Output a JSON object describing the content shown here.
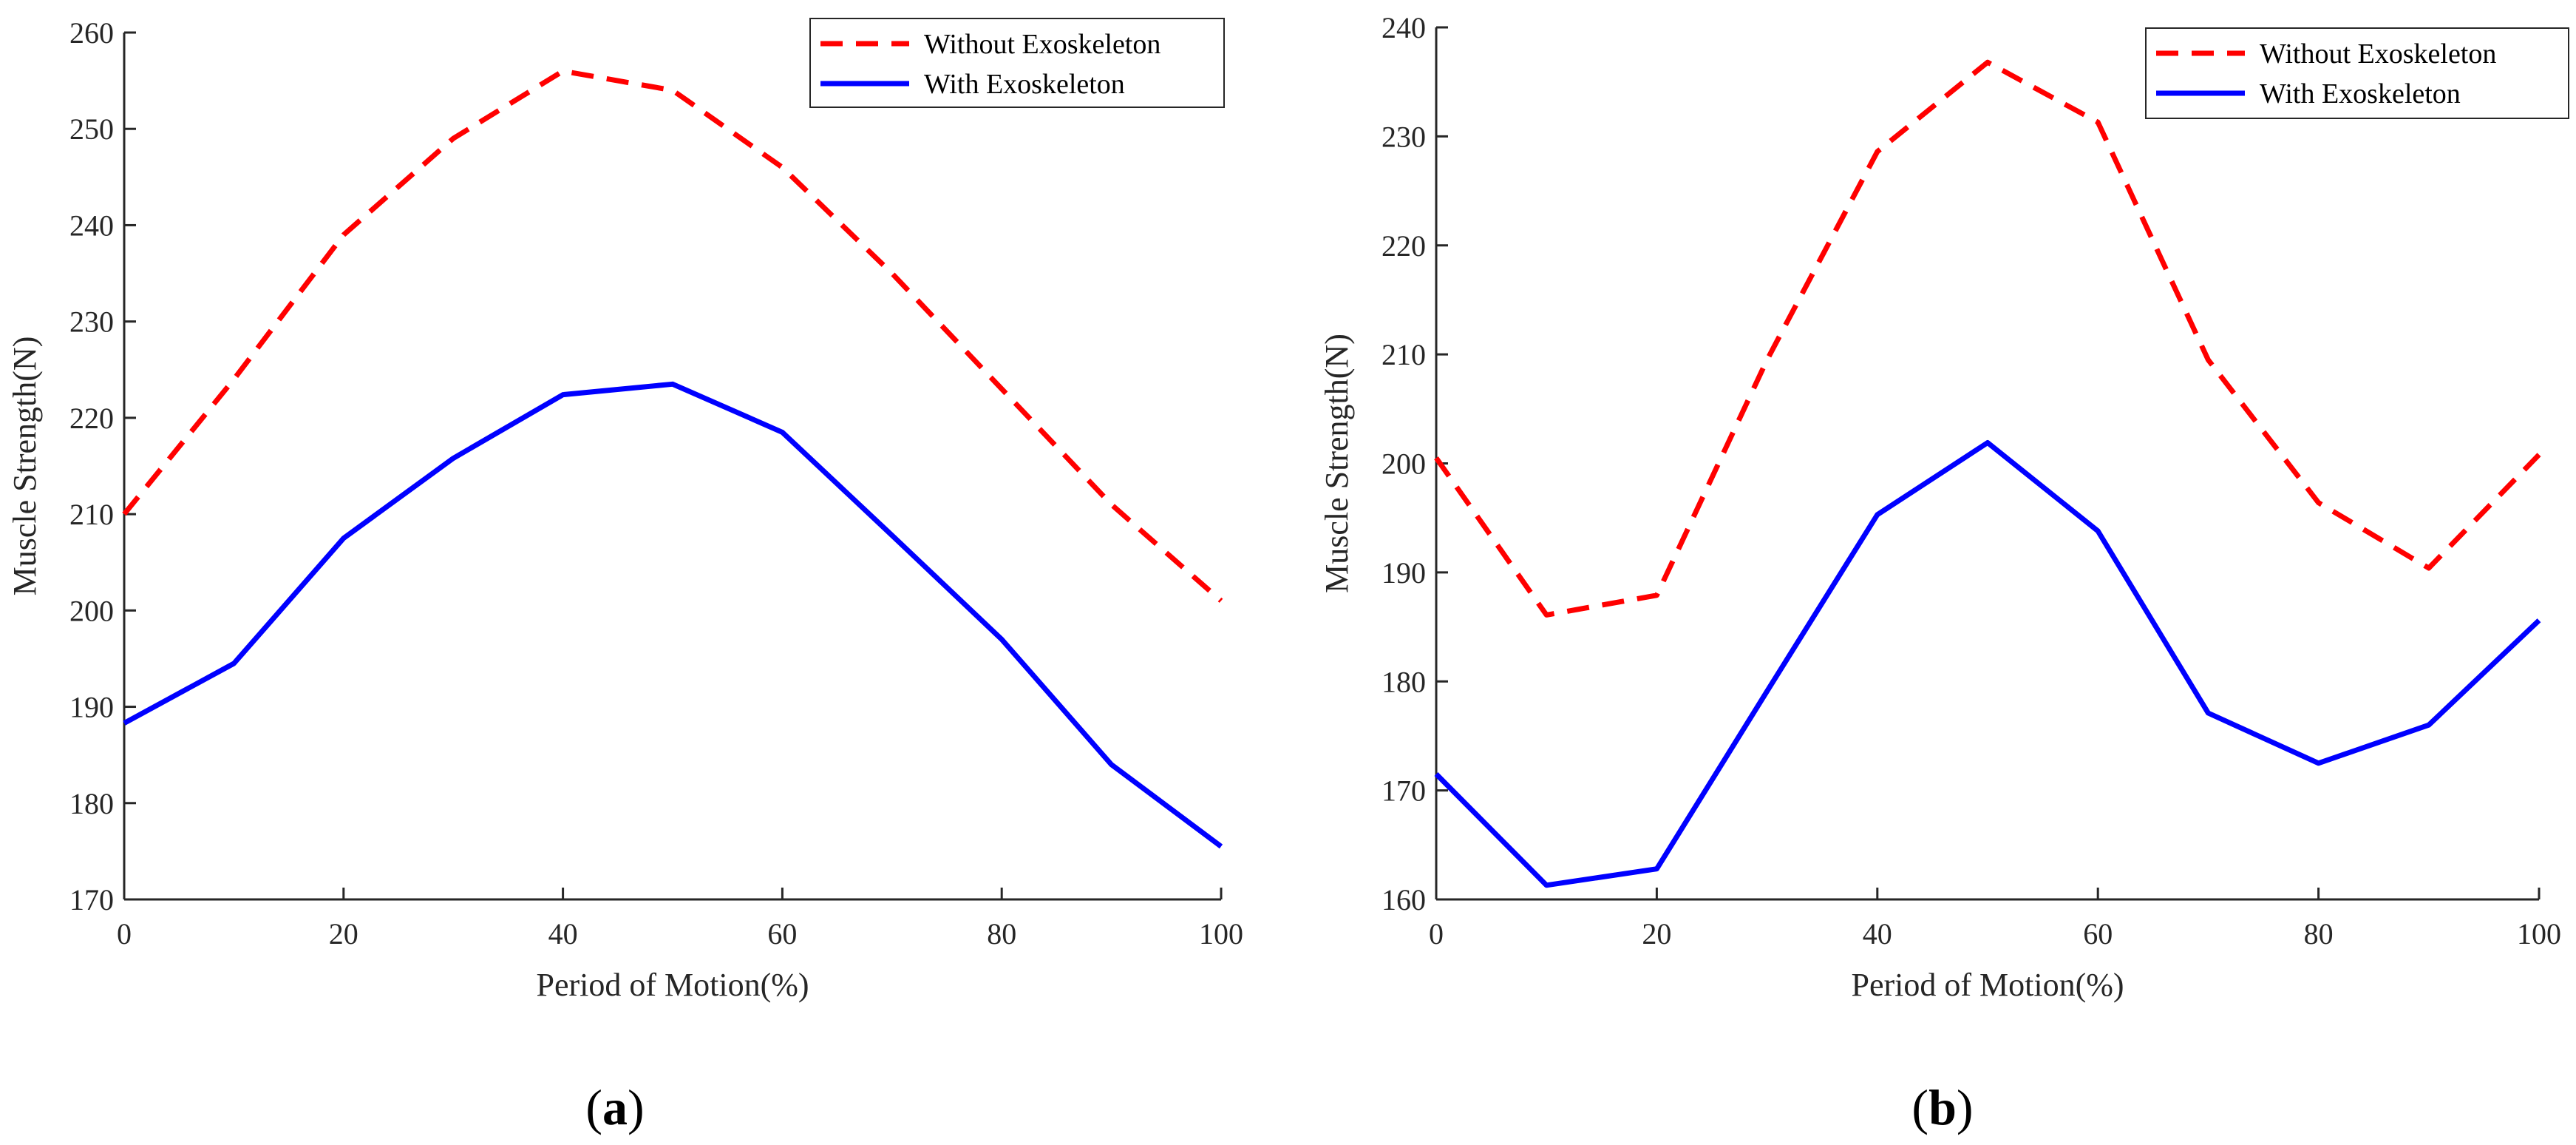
{
  "chart_data": [
    {
      "type": "line",
      "panel_label": "a",
      "xlabel": "Period of Motion(%)",
      "ylabel": "Muscle Strength(N)",
      "xlim": [
        0,
        100
      ],
      "ylim": [
        170,
        260
      ],
      "xticks": [
        0,
        20,
        40,
        60,
        80,
        100
      ],
      "yticks": [
        170,
        180,
        190,
        200,
        210,
        220,
        230,
        240,
        250,
        260
      ],
      "grid": false,
      "legend_position": "top-right",
      "x": [
        0,
        10,
        20,
        30,
        40,
        50,
        60,
        70,
        80,
        90,
        100
      ],
      "series": [
        {
          "name": "Without Exoskeleton",
          "color": "#ff0000",
          "style": "dashed",
          "values": [
            210,
            224,
            239,
            249,
            256,
            254,
            246,
            235,
            223,
            211,
            201
          ]
        },
        {
          "name": "With Exoskeleton",
          "color": "#0000ff",
          "style": "solid",
          "values": [
            188.3,
            194.5,
            207.5,
            215.8,
            222.4,
            223.5,
            218.5,
            207.8,
            197,
            184,
            175.5
          ]
        }
      ]
    },
    {
      "type": "line",
      "panel_label": "b",
      "xlabel": "Period of Motion(%)",
      "ylabel": "Muscle Strength(N)",
      "xlim": [
        0,
        100
      ],
      "ylim": [
        160,
        240
      ],
      "xticks": [
        0,
        20,
        40,
        60,
        80,
        100
      ],
      "yticks": [
        160,
        170,
        180,
        190,
        200,
        210,
        220,
        230,
        240
      ],
      "grid": false,
      "legend_position": "top-right",
      "x": [
        0,
        10,
        20,
        30,
        40,
        50,
        60,
        70,
        80,
        90,
        100
      ],
      "series": [
        {
          "name": "Without Exoskeleton",
          "color": "#ff0000",
          "style": "dashed",
          "values": [
            200.5,
            186.1,
            187.9,
            209.5,
            228.6,
            236.8,
            231.3,
            209.5,
            196.4,
            190.4,
            200.8
          ]
        },
        {
          "name": "With Exoskeleton",
          "color": "#0000ff",
          "style": "solid",
          "values": [
            171.5,
            161.3,
            162.8,
            179.1,
            195.3,
            201.9,
            193.8,
            177.1,
            172.5,
            176,
            185.6
          ]
        }
      ]
    }
  ]
}
